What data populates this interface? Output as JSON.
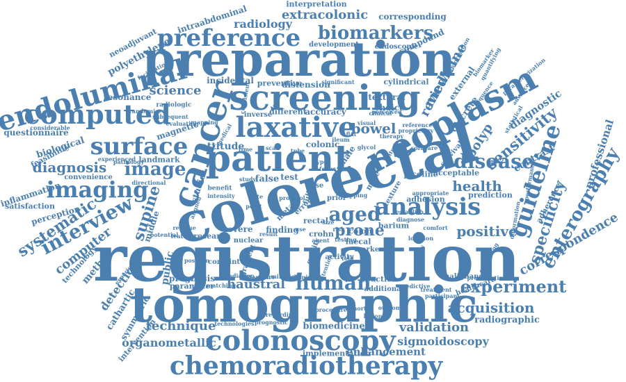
{
  "colors": {
    "word": "#4a7fb0",
    "background": "#ffffff"
  },
  "words": [
    {
      "text": "registration"
    },
    {
      "text": "tomographic"
    },
    {
      "text": "colorectal"
    },
    {
      "text": "preparation"
    },
    {
      "text": "screening"
    },
    {
      "text": "patient"
    },
    {
      "text": "neoplasm"
    },
    {
      "text": "cancer"
    },
    {
      "text": "colonoscopy"
    },
    {
      "text": "chemoradiotherapy"
    },
    {
      "text": "endoluminal"
    },
    {
      "text": "laxative"
    },
    {
      "text": "computed"
    },
    {
      "text": "preference"
    },
    {
      "text": "analysis"
    },
    {
      "text": "surface"
    },
    {
      "text": "guideline"
    },
    {
      "text": "imaging"
    },
    {
      "text": "human"
    },
    {
      "text": "disease"
    },
    {
      "text": "biomarkers"
    },
    {
      "text": "enterography"
    },
    {
      "text": "experiment"
    },
    {
      "text": "interview"
    },
    {
      "text": "sensitivity"
    },
    {
      "text": "specificity"
    },
    {
      "text": "systematic"
    },
    {
      "text": "aged"
    },
    {
      "text": "prone"
    },
    {
      "text": "image"
    },
    {
      "text": "diagnosis"
    },
    {
      "text": "bowel"
    },
    {
      "text": "health"
    },
    {
      "text": "positive"
    },
    {
      "text": "supine"
    },
    {
      "text": "acquisition"
    },
    {
      "text": "validation"
    },
    {
      "text": "technique"
    },
    {
      "text": "correspondence"
    },
    {
      "text": "medicine"
    },
    {
      "text": "polyp"
    },
    {
      "text": "review"
    },
    {
      "text": "extracolonic"
    },
    {
      "text": "radiology"
    },
    {
      "text": "science"
    },
    {
      "text": "computer"
    },
    {
      "text": "sigmoidoscopy"
    },
    {
      "text": "organometallic"
    },
    {
      "text": "enhancement"
    },
    {
      "text": "haustral"
    },
    {
      "text": "professional"
    },
    {
      "text": "attitude"
    },
    {
      "text": "detection"
    },
    {
      "text": "public"
    },
    {
      "text": "diagnostic"
    },
    {
      "text": "contrast"
    },
    {
      "text": "corresponding"
    },
    {
      "text": "interpretation"
    },
    {
      "text": "intraabdominal"
    },
    {
      "text": "polyethylene"
    },
    {
      "text": "neoadjuvant"
    },
    {
      "text": "method"
    },
    {
      "text": "middle"
    },
    {
      "text": "radiographic"
    },
    {
      "text": "questionnaire"
    },
    {
      "text": "resonance"
    },
    {
      "text": "magnetic"
    },
    {
      "text": "biological"
    },
    {
      "text": "feasibility"
    },
    {
      "text": "inflammation"
    },
    {
      "text": "satisfaction"
    },
    {
      "text": "perception"
    },
    {
      "text": "technology"
    },
    {
      "text": "landmark"
    },
    {
      "text": "convenience"
    },
    {
      "text": "cathartic"
    },
    {
      "text": "symmetric"
    },
    {
      "text": "intervention"
    },
    {
      "text": "prognosis"
    },
    {
      "text": "parameter"
    },
    {
      "text": "biomedicine"
    },
    {
      "text": "implementation"
    },
    {
      "text": "adherence"
    },
    {
      "text": "prediction"
    },
    {
      "text": "discrete"
    },
    {
      "text": "external"
    },
    {
      "text": "compound"
    },
    {
      "text": "endoscopic"
    },
    {
      "text": "development"
    },
    {
      "text": "textural"
    },
    {
      "text": "choice"
    },
    {
      "text": "accuracy"
    },
    {
      "text": "colonic"
    },
    {
      "text": "incidental"
    },
    {
      "text": "preventive"
    },
    {
      "text": "distension"
    },
    {
      "text": "cylindrical"
    },
    {
      "text": "different"
    },
    {
      "text": "inverse"
    },
    {
      "text": "finding"
    },
    {
      "text": "rectal"
    },
    {
      "text": "faecal"
    },
    {
      "text": "colon"
    },
    {
      "text": "barium"
    },
    {
      "text": "crohn"
    },
    {
      "text": "severe"
    },
    {
      "text": "research"
    },
    {
      "text": "studies"
    },
    {
      "text": "false"
    },
    {
      "text": "test"
    },
    {
      "text": "female"
    },
    {
      "text": "male"
    },
    {
      "text": "adhesion"
    },
    {
      "text": "acceptable"
    },
    {
      "text": "reaction"
    },
    {
      "text": "activity"
    },
    {
      "text": "additional"
    },
    {
      "text": "marker"
    },
    {
      "text": "quality"
    },
    {
      "text": "nuclear"
    },
    {
      "text": "conjoint"
    },
    {
      "text": "gradient"
    },
    {
      "text": "meta"
    },
    {
      "text": "error"
    },
    {
      "text": "prior"
    },
    {
      "text": "case"
    },
    {
      "text": "full"
    },
    {
      "text": "picoline"
    },
    {
      "text": "texture"
    },
    {
      "text": "survival"
    },
    {
      "text": "malignancy"
    },
    {
      "text": "healthcare"
    },
    {
      "text": "radiologic"
    },
    {
      "text": "pathology"
    },
    {
      "text": "facilitating"
    },
    {
      "text": "randomised"
    },
    {
      "text": "experience"
    },
    {
      "text": "position"
    },
    {
      "text": "medical"
    },
    {
      "text": "benefit"
    },
    {
      "text": "potential"
    },
    {
      "text": "evaluating"
    },
    {
      "text": "subsequent"
    },
    {
      "text": "consistent"
    },
    {
      "text": "sequence"
    },
    {
      "text": "biomarker"
    },
    {
      "text": "information"
    },
    {
      "text": "therapy"
    },
    {
      "text": "glycol"
    },
    {
      "text": "citrate"
    },
    {
      "text": "visual"
    },
    {
      "text": "clinical"
    },
    {
      "text": "location"
    },
    {
      "text": "diagnose"
    },
    {
      "text": "comfort"
    },
    {
      "text": "establish"
    },
    {
      "text": "motility"
    },
    {
      "text": "testing"
    },
    {
      "text": "intention"
    },
    {
      "text": "treatment"
    },
    {
      "text": "predictive"
    },
    {
      "text": "participant"
    },
    {
      "text": "regarding"
    },
    {
      "text": "prognostic"
    },
    {
      "text": "technologies"
    },
    {
      "text": "matching"
    },
    {
      "text": "result"
    },
    {
      "text": "point"
    },
    {
      "text": "study"
    },
    {
      "text": "agent"
    },
    {
      "text": "mapping"
    },
    {
      "text": "presentation"
    },
    {
      "text": "significant"
    },
    {
      "text": "residue"
    },
    {
      "text": "feature"
    },
    {
      "text": "deformation"
    },
    {
      "text": "comparing"
    },
    {
      "text": "appropriate"
    },
    {
      "text": "performance"
    },
    {
      "text": "perceived"
    },
    {
      "text": "type"
    },
    {
      "text": "focus"
    },
    {
      "text": "software"
    },
    {
      "text": "reference"
    },
    {
      "text": "proprietary"
    },
    {
      "text": "quantifying"
    },
    {
      "text": "parameterization"
    },
    {
      "text": "advanced"
    },
    {
      "text": "statistical"
    },
    {
      "text": "directional"
    },
    {
      "text": "aligned"
    },
    {
      "text": "considerable"
    },
    {
      "text": "experienced"
    },
    {
      "text": "intensity"
    },
    {
      "text": "literature"
    },
    {
      "text": "radiation"
    },
    {
      "text": "examination"
    },
    {
      "text": "predominant"
    },
    {
      "text": "procedure"
    },
    {
      "text": "cohort"
    },
    {
      "text": "lesion"
    },
    {
      "text": "outcome"
    },
    {
      "text": "protocol"
    },
    {
      "text": "dose"
    },
    {
      "text": "tipping"
    },
    {
      "text": "ileum"
    },
    {
      "text": "flat"
    },
    {
      "text": "scan"
    },
    {
      "text": "tube"
    },
    {
      "text": "time"
    },
    {
      "text": "rate"
    },
    {
      "text": "size"
    },
    {
      "text": "risk"
    },
    {
      "text": "use"
    },
    {
      "text": "fold"
    },
    {
      "text": "tag"
    },
    {
      "text": "rule"
    },
    {
      "text": "mass"
    }
  ]
}
